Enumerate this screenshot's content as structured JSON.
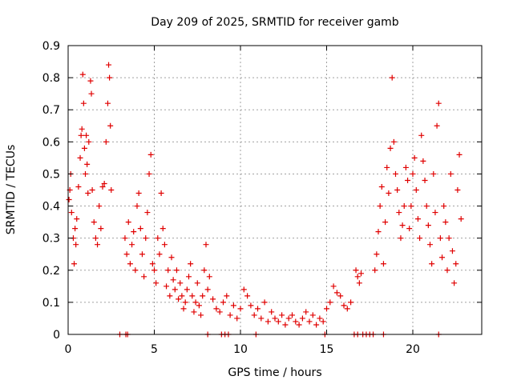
{
  "chart_data": {
    "type": "scatter",
    "title": "Day 209 of 2025, SRMTID for receiver gamb",
    "xlabel": "GPS time / hours",
    "ylabel": "SRMTID / TECUs",
    "xlim": [
      0,
      24
    ],
    "ylim": [
      0,
      0.9
    ],
    "xticks": [
      0,
      5,
      10,
      15,
      20
    ],
    "xtick_labels": [
      "0",
      "5",
      "10",
      "15",
      "20"
    ],
    "yticks": [
      0,
      0.1,
      0.2,
      0.3,
      0.4,
      0.5,
      0.6,
      0.7,
      0.8,
      0.9
    ],
    "ytick_labels": [
      "0",
      "0.1",
      "0.2",
      "0.3",
      "0.4",
      "0.5",
      "0.6",
      "0.7",
      "0.8",
      "0.9"
    ],
    "grid": true,
    "marker": "plus",
    "color": "#e00000",
    "series": [
      {
        "name": "SRMTID",
        "x": [
          0.05,
          0.1,
          0.15,
          0.2,
          0.3,
          0.35,
          0.4,
          0.45,
          0.5,
          0.6,
          0.7,
          0.75,
          0.8,
          0.85,
          0.9,
          0.95,
          1.0,
          1.05,
          1.1,
          1.15,
          1.2,
          1.3,
          1.35,
          1.4,
          1.5,
          1.6,
          1.7,
          1.8,
          1.9,
          2.0,
          2.1,
          2.2,
          2.3,
          2.35,
          2.4,
          2.45,
          2.5,
          3.3,
          3.4,
          3.5,
          3.6,
          3.7,
          3.8,
          3.9,
          4.0,
          4.1,
          4.2,
          4.3,
          4.4,
          4.5,
          4.6,
          4.7,
          4.8,
          4.9,
          5.0,
          5.1,
          5.2,
          5.3,
          5.4,
          5.5,
          5.6,
          5.7,
          5.8,
          5.9,
          6.0,
          6.1,
          6.2,
          6.3,
          6.4,
          6.5,
          6.6,
          6.7,
          6.8,
          6.9,
          7.0,
          7.1,
          7.2,
          7.3,
          7.4,
          7.5,
          7.6,
          7.7,
          7.8,
          7.9,
          8.0,
          8.1,
          8.2,
          8.4,
          8.6,
          8.8,
          9.0,
          9.2,
          9.4,
          9.6,
          9.8,
          10.0,
          10.2,
          10.4,
          10.6,
          10.8,
          11.0,
          11.2,
          11.4,
          11.6,
          11.8,
          12.0,
          12.2,
          12.4,
          12.6,
          12.8,
          13.0,
          13.2,
          13.4,
          13.6,
          13.8,
          14.0,
          14.2,
          14.4,
          14.6,
          14.8,
          15.0,
          15.2,
          15.4,
          15.6,
          15.8,
          16.0,
          16.2,
          16.4,
          16.7,
          16.8,
          16.9,
          17.0,
          17.8,
          17.9,
          18.0,
          18.1,
          18.2,
          18.3,
          18.4,
          18.5,
          18.6,
          18.7,
          18.8,
          18.9,
          19.0,
          19.1,
          19.2,
          19.3,
          19.4,
          19.5,
          19.6,
          19.7,
          19.8,
          19.9,
          20.0,
          20.1,
          20.2,
          20.3,
          20.4,
          20.5,
          20.6,
          20.7,
          20.8,
          20.9,
          21.0,
          21.1,
          21.2,
          21.3,
          21.4,
          21.5,
          21.6,
          21.7,
          21.8,
          21.9,
          22.0,
          22.1,
          22.2,
          22.3,
          22.4,
          22.5,
          22.6,
          22.7,
          22.8,
          3.0,
          3.35,
          3.45,
          8.1,
          8.9,
          9.1,
          9.3,
          10.9,
          14.9,
          16.6,
          16.8,
          17.1,
          17.3,
          17.5,
          17.7,
          18.3,
          21.5
        ],
        "y": [
          0.42,
          0.45,
          0.5,
          0.38,
          0.3,
          0.22,
          0.33,
          0.28,
          0.36,
          0.46,
          0.55,
          0.62,
          0.64,
          0.81,
          0.72,
          0.58,
          0.5,
          0.62,
          0.53,
          0.44,
          0.6,
          0.79,
          0.75,
          0.45,
          0.35,
          0.3,
          0.28,
          0.4,
          0.33,
          0.46,
          0.47,
          0.6,
          0.72,
          0.84,
          0.8,
          0.65,
          0.45,
          0.3,
          0.25,
          0.35,
          0.22,
          0.28,
          0.32,
          0.2,
          0.4,
          0.44,
          0.33,
          0.25,
          0.18,
          0.3,
          0.38,
          0.5,
          0.56,
          0.22,
          0.2,
          0.16,
          0.3,
          0.25,
          0.44,
          0.33,
          0.28,
          0.15,
          0.2,
          0.12,
          0.24,
          0.17,
          0.14,
          0.2,
          0.11,
          0.16,
          0.12,
          0.08,
          0.1,
          0.14,
          0.18,
          0.22,
          0.12,
          0.07,
          0.1,
          0.16,
          0.09,
          0.06,
          0.12,
          0.2,
          0.28,
          0.14,
          0.18,
          0.11,
          0.08,
          0.07,
          0.1,
          0.12,
          0.06,
          0.09,
          0.05,
          0.08,
          0.14,
          0.12,
          0.09,
          0.06,
          0.08,
          0.05,
          0.1,
          0.04,
          0.07,
          0.05,
          0.04,
          0.06,
          0.03,
          0.05,
          0.06,
          0.04,
          0.03,
          0.05,
          0.07,
          0.04,
          0.06,
          0.03,
          0.05,
          0.04,
          0.08,
          0.1,
          0.15,
          0.13,
          0.12,
          0.09,
          0.08,
          0.1,
          0.2,
          0.18,
          0.16,
          0.19,
          0.2,
          0.25,
          0.32,
          0.4,
          0.46,
          0.22,
          0.35,
          0.52,
          0.44,
          0.58,
          0.8,
          0.6,
          0.5,
          0.45,
          0.38,
          0.3,
          0.34,
          0.4,
          0.52,
          0.48,
          0.33,
          0.4,
          0.5,
          0.55,
          0.45,
          0.36,
          0.3,
          0.62,
          0.54,
          0.48,
          0.4,
          0.34,
          0.28,
          0.22,
          0.5,
          0.38,
          0.65,
          0.72,
          0.3,
          0.24,
          0.4,
          0.35,
          0.2,
          0.3,
          0.5,
          0.26,
          0.16,
          0.22,
          0.45,
          0.56,
          0.36,
          0,
          0,
          0,
          0,
          0,
          0,
          0,
          0,
          0,
          0,
          0,
          0,
          0,
          0,
          0,
          0,
          0
        ]
      }
    ]
  }
}
